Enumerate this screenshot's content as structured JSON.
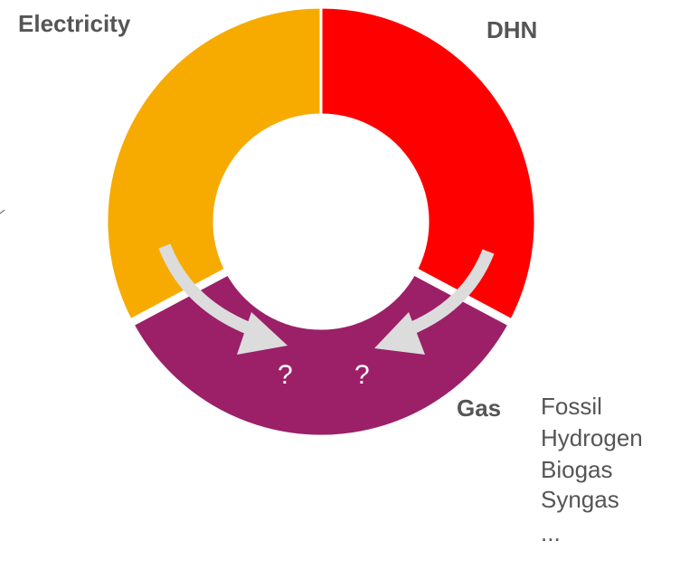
{
  "labels": {
    "electricity": "Electricity",
    "dhn": "DHN",
    "gas": "Gas"
  },
  "unknowns": [
    "?",
    "?"
  ],
  "gas_types": [
    "Fossil",
    "Hydrogen",
    "Biogas",
    "Syngas",
    "..."
  ]
}
